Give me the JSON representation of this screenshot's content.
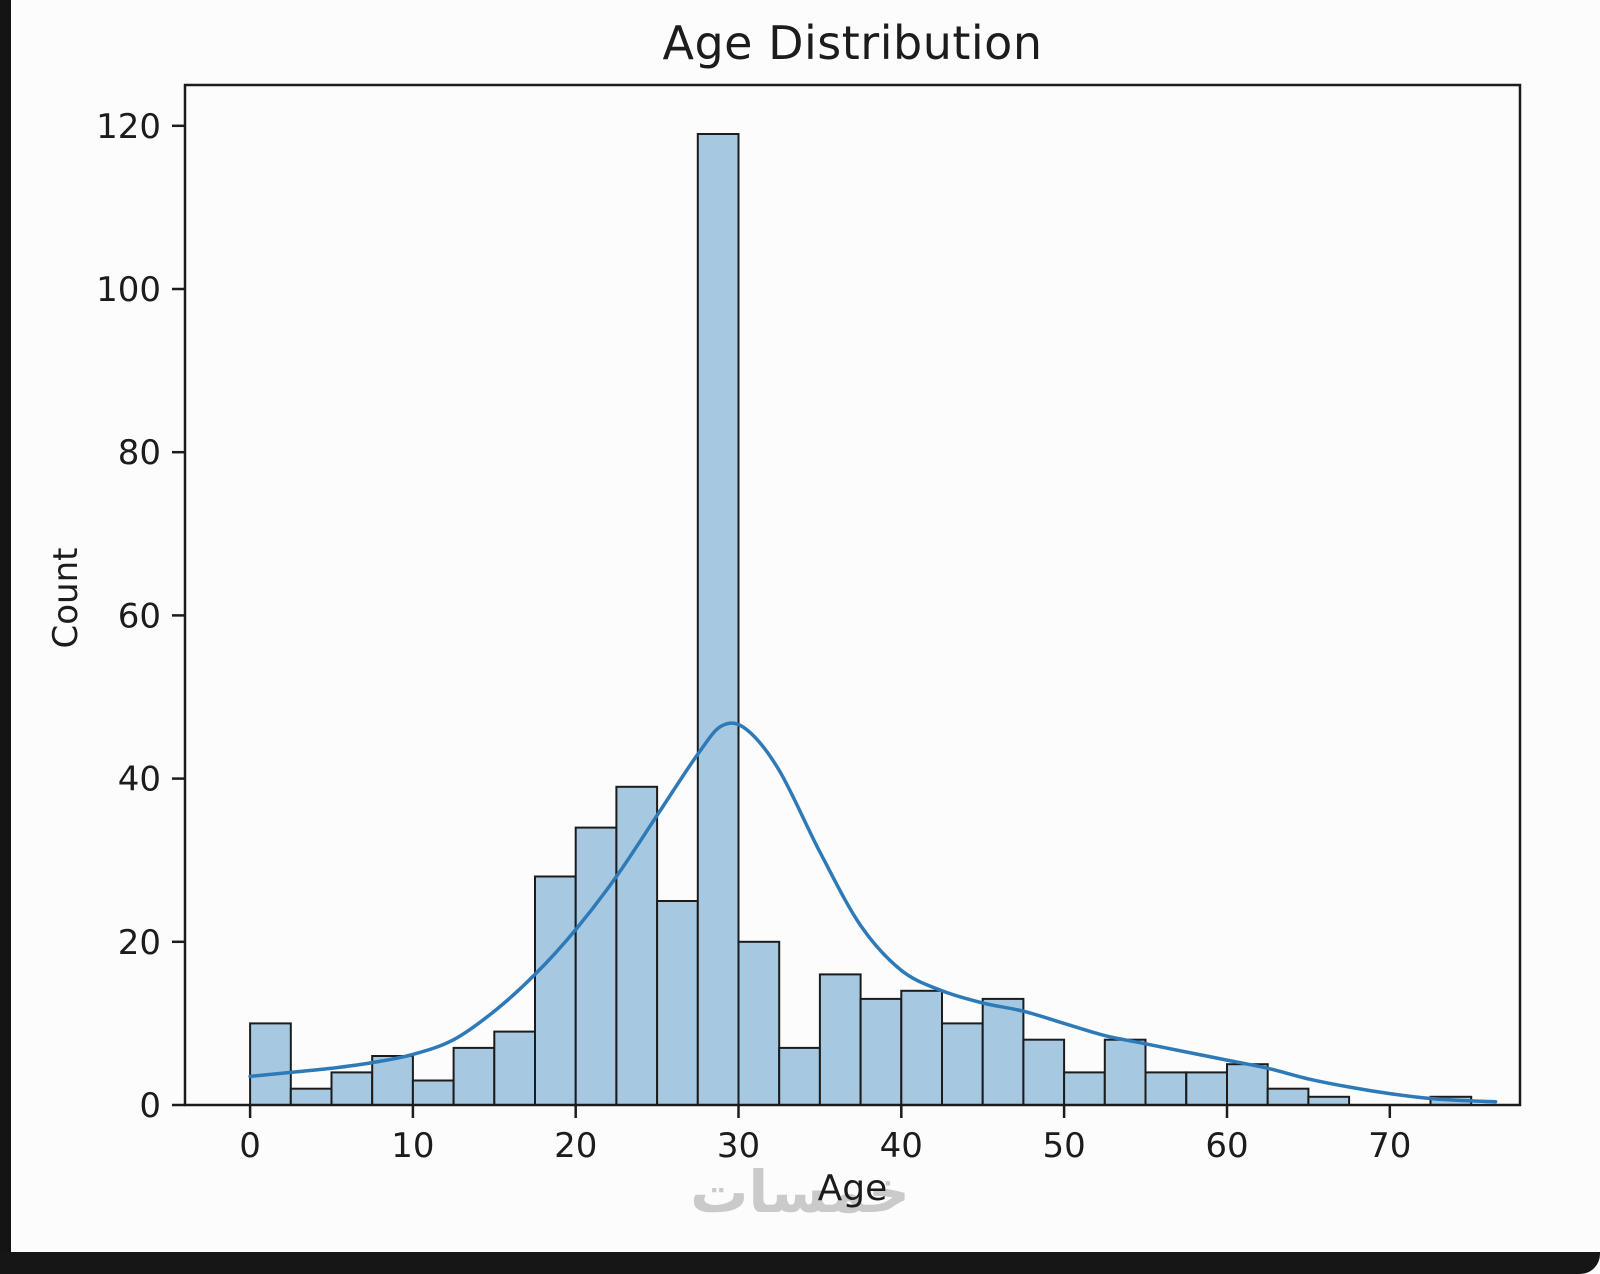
{
  "page": {
    "watermark": "خمسات"
  },
  "chart_data": {
    "type": "bar",
    "subtype": "histogram-with-kde",
    "title": "Age Distribution",
    "xlabel": "Age",
    "ylabel": "Count",
    "bins": {
      "start": 0,
      "width": 2.5
    },
    "counts": [
      10,
      2,
      4,
      6,
      3,
      7,
      9,
      28,
      34,
      39,
      25,
      119,
      20,
      7,
      16,
      13,
      14,
      10,
      13,
      8,
      4,
      8,
      4,
      4,
      5,
      2,
      1,
      0,
      0,
      1
    ],
    "kde": {
      "x": [
        0,
        2.5,
        5,
        7.5,
        10,
        12.5,
        15,
        17.5,
        20,
        22.5,
        25,
        27.5,
        29,
        30.5,
        32.5,
        35,
        37.5,
        40,
        42.5,
        45,
        47.5,
        50,
        52.5,
        55,
        57.5,
        60,
        62.5,
        65,
        67.5,
        70,
        72.5,
        75,
        76.5
      ],
      "y": [
        3.5,
        4,
        4.5,
        5.2,
        6.2,
        8,
        11.5,
        16,
        21.5,
        28,
        35.5,
        43,
        46.5,
        46,
        41,
        31,
        22,
        16.5,
        14,
        12.5,
        11.5,
        10,
        8.5,
        7.5,
        6.5,
        5.5,
        4.5,
        3.2,
        2.2,
        1.4,
        0.8,
        0.5,
        0.4
      ]
    },
    "x_ticks": [
      0,
      10,
      20,
      30,
      40,
      50,
      60,
      70
    ],
    "y_ticks": [
      0,
      20,
      40,
      60,
      80,
      100,
      120
    ],
    "xlim": [
      -4,
      78
    ],
    "ylim": [
      0,
      125
    ],
    "grid": false,
    "legend": null,
    "colors": {
      "bar_fill": "#a6c9e1",
      "bar_edge": "#1c1c1c",
      "kde_line": "#2e7ab8",
      "axis": "#1c1c1c",
      "text": "#1c1c1c",
      "watermark": "#c2c2c2"
    }
  }
}
